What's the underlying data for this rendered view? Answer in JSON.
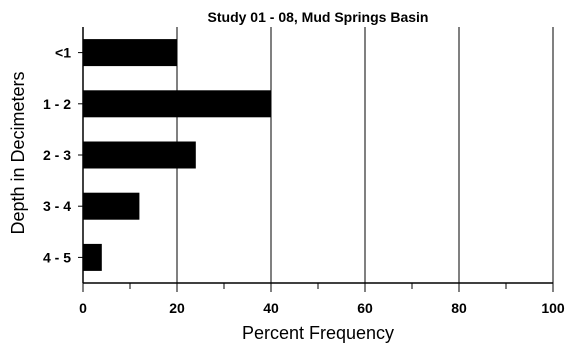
{
  "chart_data": {
    "type": "bar",
    "orientation": "horizontal",
    "title": "Study 01 - 08, Mud Springs Basin",
    "xlabel": "Percent Frequency",
    "ylabel": "Depth in Decimeters",
    "categories": [
      "<1",
      "1 - 2",
      "2 - 3",
      "3 - 4",
      "4 - 5"
    ],
    "values": [
      20,
      40,
      24,
      12,
      4
    ],
    "xlim": [
      0,
      100
    ],
    "x_ticks": [
      0,
      20,
      40,
      60,
      80,
      100
    ],
    "x_minor_ticks": [
      10,
      30,
      50,
      70,
      90
    ],
    "grid": "vertical",
    "bar_color": "#000000",
    "legend": "none"
  }
}
